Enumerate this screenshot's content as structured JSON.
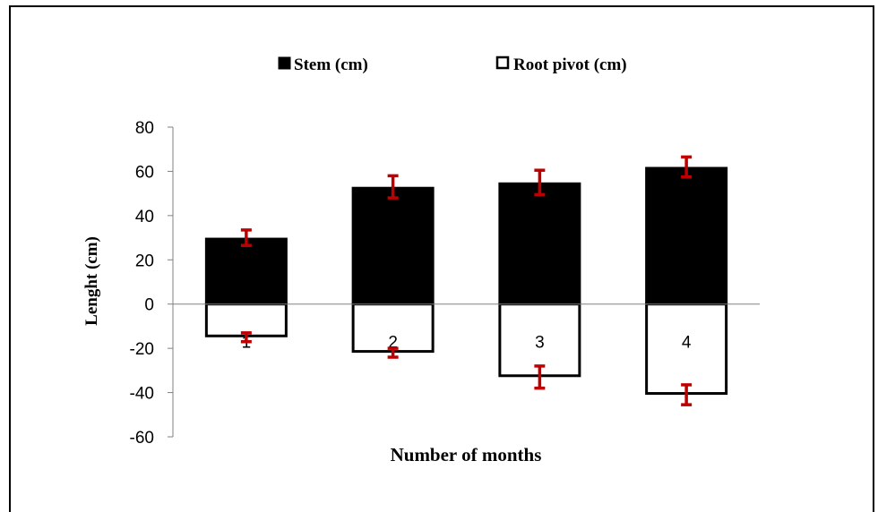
{
  "chart_data": {
    "type": "bar",
    "title": "",
    "xlabel": "Number of months",
    "ylabel": "Lenght (cm)",
    "ylim": [
      -60,
      80
    ],
    "yticks": [
      80,
      60,
      40,
      20,
      0,
      -20,
      -40,
      -60
    ],
    "yticks_labels": [
      "80",
      "60",
      "40",
      "20",
      "0",
      "-20",
      "-40",
      "-60"
    ],
    "categories": [
      "1",
      "2",
      "3",
      "4"
    ],
    "legend_position": "top",
    "series": [
      {
        "name": "Stem (cm)",
        "color": "#000000",
        "values": [
          30,
          53,
          55,
          62
        ],
        "errors": [
          3.5,
          5,
          5.5,
          4.5
        ]
      },
      {
        "name": "Root pivot (cm)",
        "color": "#ffffff",
        "values": [
          -15,
          -22,
          -33,
          -41
        ],
        "errors": [
          2,
          2,
          5,
          4.5
        ]
      }
    ],
    "error_bar_color": "#c00000",
    "grid": false
  }
}
